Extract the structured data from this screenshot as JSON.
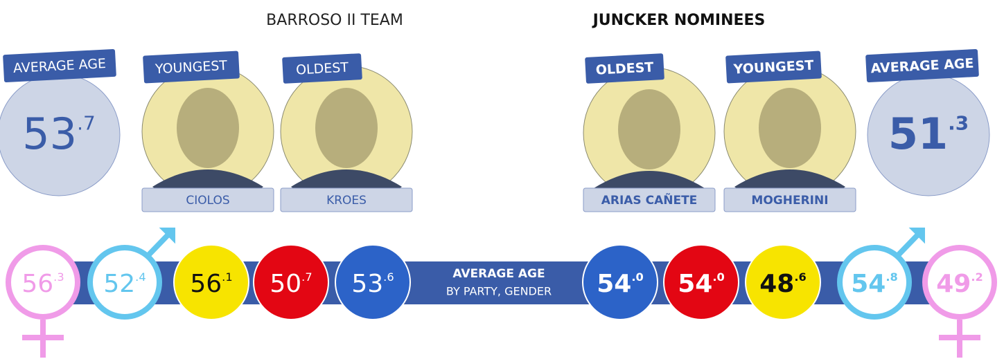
{
  "barroso": {
    "title": "BARROSO II TEAM",
    "average": {
      "label": "AVERAGE AGE",
      "int": "53",
      "dec": ".7"
    },
    "youngest": {
      "tag": "YOUNGEST",
      "name": "CIOLOS"
    },
    "oldest": {
      "tag": "OLDEST",
      "name": "KROES"
    },
    "circles": [
      {
        "int": "56",
        "dec": ".3",
        "color": "#f09be8",
        "fill": "#ffffff",
        "text_color": "#f09be8"
      },
      {
        "int": "52",
        "dec": ".4",
        "color": "#63c6ee",
        "fill": "#ffffff",
        "text_color": "#63c6ee"
      },
      {
        "int": "56",
        "dec": ".1",
        "color": "#f7e400",
        "fill": "#f7e400",
        "text_color": "#111111"
      },
      {
        "int": "50",
        "dec": ".7",
        "color": "#e30613",
        "fill": "#e30613",
        "text_color": "#ffffff"
      },
      {
        "int": "53",
        "dec": ".6",
        "color": "#2c63c8",
        "fill": "#2c63c8",
        "text_color": "#ffffff"
      }
    ]
  },
  "juncker": {
    "title": "JUNCKER NOMINEES",
    "average": {
      "label": "AVERAGE AGE",
      "int": "51",
      "dec": ".3"
    },
    "oldest": {
      "tag": "OLDEST",
      "name": "ARIAS CAÑETE"
    },
    "youngest": {
      "tag": "YOUNGEST",
      "name": "MOGHERINI"
    },
    "circles": [
      {
        "int": "54",
        "dec": ".0",
        "color": "#2c63c8",
        "fill": "#2c63c8",
        "text_color": "#ffffff"
      },
      {
        "int": "54",
        "dec": ".0",
        "color": "#e30613",
        "fill": "#e30613",
        "text_color": "#ffffff"
      },
      {
        "int": "48",
        "dec": ".6",
        "color": "#f7e400",
        "fill": "#f7e400",
        "text_color": "#111111"
      },
      {
        "int": "54",
        "dec": ".8",
        "color": "#63c6ee",
        "fill": "#ffffff",
        "text_color": "#63c6ee"
      },
      {
        "int": "49",
        "dec": ".2",
        "color": "#f09be8",
        "fill": "#ffffff",
        "text_color": "#f09be8"
      }
    ]
  },
  "bar": {
    "label": "AVERAGE AGE",
    "sublabel": "BY PARTY, GENDER"
  }
}
